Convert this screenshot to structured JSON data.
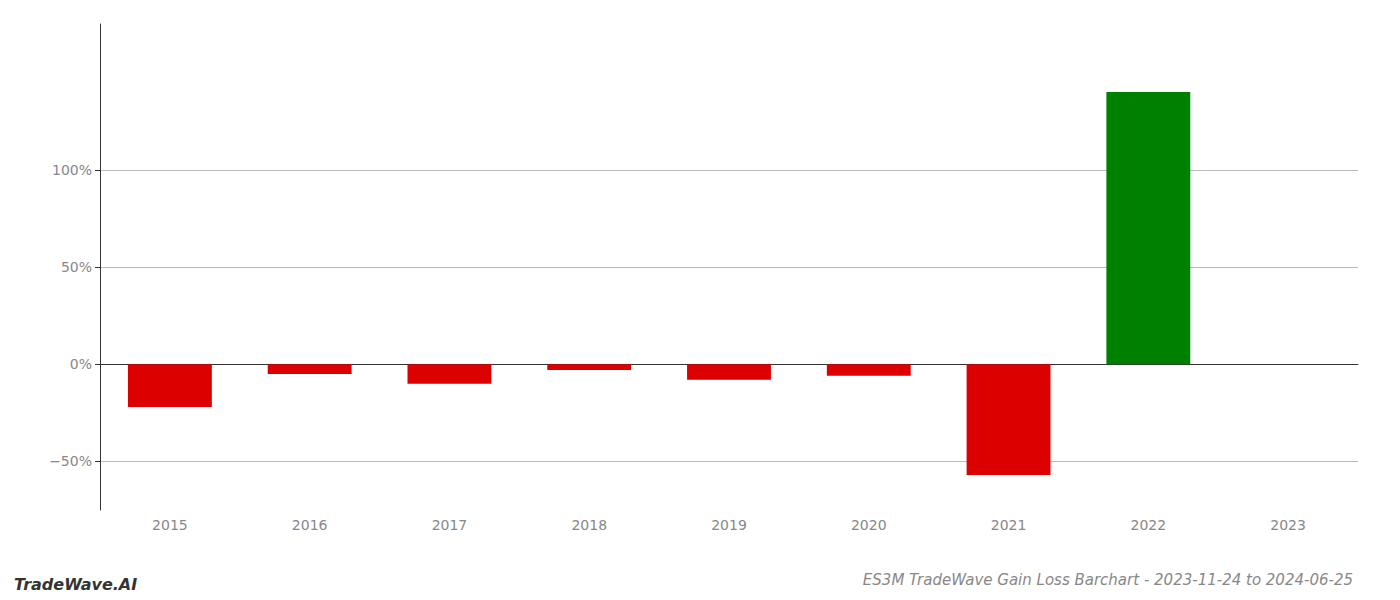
{
  "chart_data": {
    "type": "bar",
    "title": "ES3M TradeWave Gain Loss Barchart - 2023-11-24 to 2024-06-25",
    "annotations": [
      "TradeWave.AI"
    ],
    "categories": [
      "2015",
      "2016",
      "2017",
      "2018",
      "2019",
      "2020",
      "2021",
      "2022",
      "2023"
    ],
    "values": [
      -22,
      -5,
      -10,
      -3,
      -8,
      -6,
      -57,
      140,
      0
    ],
    "colors": [
      "#dd0000",
      "#dd0000",
      "#dd0000",
      "#dd0000",
      "#dd0000",
      "#dd0000",
      "#dd0000",
      "#008000",
      "#ffffff"
    ],
    "ylim": [
      -75,
      175
    ],
    "yticks": [
      {
        "value": -50,
        "label": "−50%"
      },
      {
        "value": 0,
        "label": "0%"
      },
      {
        "value": 50,
        "label": "50%"
      },
      {
        "value": 100,
        "label": "100%"
      }
    ],
    "grid": true
  }
}
